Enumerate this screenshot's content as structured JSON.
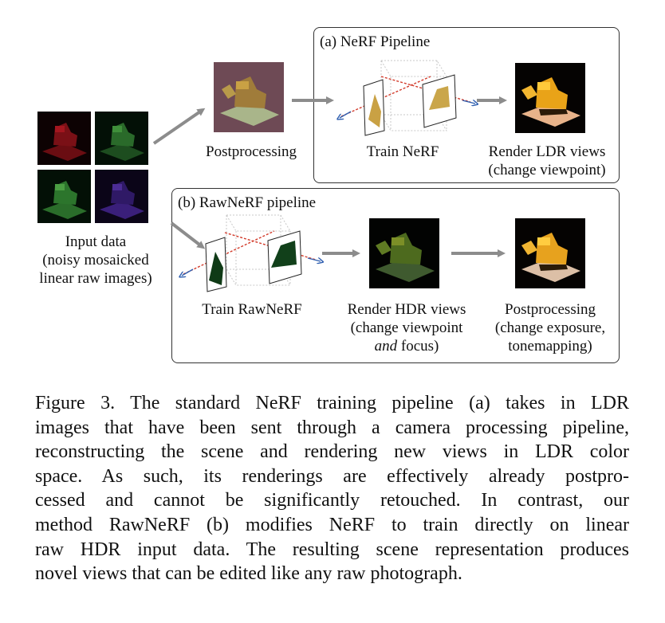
{
  "figure": {
    "input": {
      "lines": [
        "Input data",
        "(noisy mosaicked",
        "linear raw images)"
      ]
    },
    "top_left": {
      "postprocessing_label": "Postprocessing"
    },
    "panel_a": {
      "title": "(a) NeRF Pipeline",
      "train_label": "Train NeRF",
      "render_lines": [
        "Render LDR views",
        "(change viewpoint)"
      ]
    },
    "panel_b": {
      "title": "(b) RawNeRF pipeline",
      "train_label": "Train RawNeRF",
      "render_line1": "Render HDR views",
      "render_line2": "(change viewpoint",
      "render_line3_em": "and",
      "render_line3_rest": " focus)",
      "post_lines": [
        "Postprocessing",
        "(change exposure,",
        "tonemapping)"
      ]
    }
  },
  "caption": {
    "lines": [
      "Figure 3.  The standard NeRF training pipeline (a) takes in LDR",
      "images that have been sent through a camera processing pipeline,",
      "reconstructing the scene and rendering new views in LDR color",
      "space.  As such, its renderings are effectively already postpro-",
      "cessed and cannot be significantly retouched.  In contrast, our",
      "method RawNeRF (b) modifies NeRF to train directly on linear",
      "raw HDR input data. The resulting scene representation produces",
      "novel views that can be edited like any raw photograph."
    ]
  },
  "colors": {
    "arrow_gray": "#8c8c8c",
    "ray_red": "#d23a2a",
    "ray_blue": "#2f5fb0",
    "panel_border": "#333333"
  }
}
